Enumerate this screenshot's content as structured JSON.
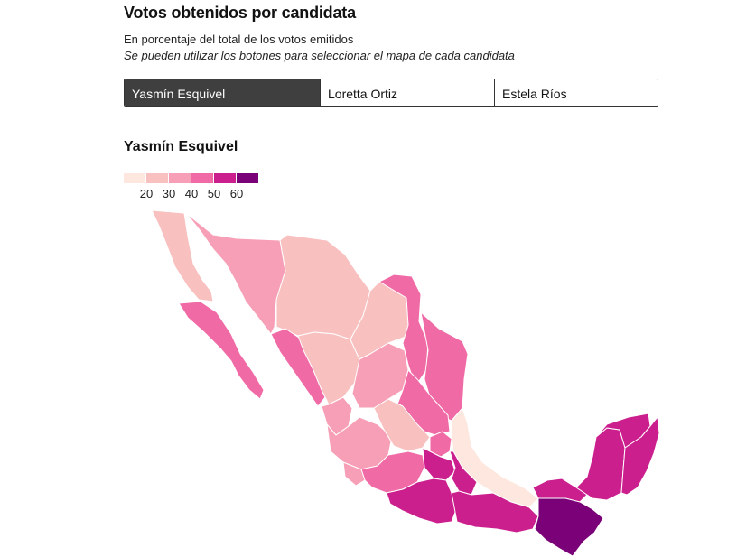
{
  "header": {
    "title": "Votos obtenidos por candidata",
    "subtitle": "En porcentaje del total de los votos emitidos",
    "instructions": "Se pueden utilizar los botones para seleccionar el mapa de cada candidata"
  },
  "tabs": [
    {
      "label": "Yasmín Esquivel",
      "active": true
    },
    {
      "label": "Loretta Ortiz",
      "active": false
    },
    {
      "label": "Estela Ríos",
      "active": false
    }
  ],
  "map": {
    "title": "Yasmín Esquivel",
    "legend": {
      "colors": [
        "#fde7de",
        "#f9c0c0",
        "#f79fb6",
        "#f06aa6",
        "#cc1f8e",
        "#7a0177"
      ],
      "ticks": [
        "20",
        "30",
        "40",
        "50",
        "60"
      ]
    }
  }
}
